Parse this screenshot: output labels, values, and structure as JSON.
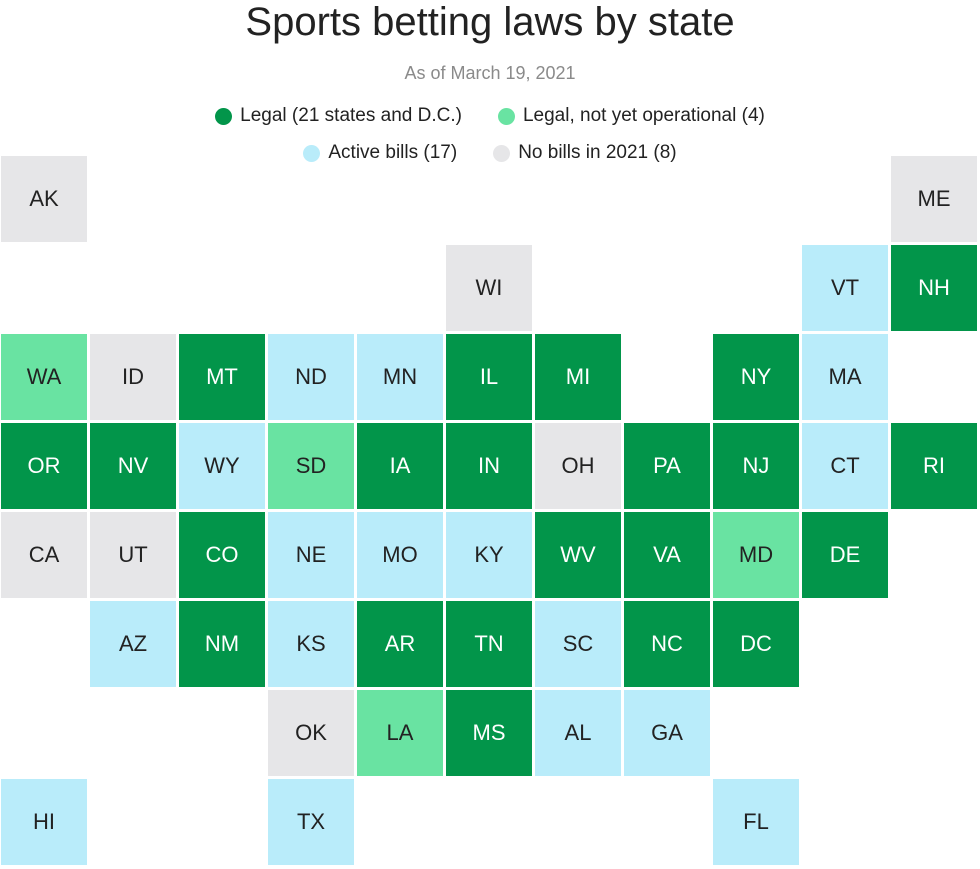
{
  "title": "Sports betting laws by state",
  "subtitle": "As of March 19, 2021",
  "colors": {
    "legal": "#02954a",
    "not_operational": "#69e3a2",
    "active": "#b9ecfa",
    "none": "#e6e6e8"
  },
  "legend": [
    {
      "key": "legal",
      "label": "Legal (21 states and D.C.)"
    },
    {
      "key": "not_operational",
      "label": "Legal, not yet operational (4)"
    },
    {
      "key": "active",
      "label": "Active bills (17)"
    },
    {
      "key": "none",
      "label": "No bills in 2021 (8)"
    }
  ],
  "states": [
    {
      "abbr": "AK",
      "col": 0,
      "row": 0,
      "status": "none"
    },
    {
      "abbr": "ME",
      "col": 10,
      "row": 0,
      "status": "none"
    },
    {
      "abbr": "WI",
      "col": 5,
      "row": 1,
      "status": "none"
    },
    {
      "abbr": "VT",
      "col": 9,
      "row": 1,
      "status": "active"
    },
    {
      "abbr": "NH",
      "col": 10,
      "row": 1,
      "status": "legal"
    },
    {
      "abbr": "WA",
      "col": 0,
      "row": 2,
      "status": "not_operational"
    },
    {
      "abbr": "ID",
      "col": 1,
      "row": 2,
      "status": "none"
    },
    {
      "abbr": "MT",
      "col": 2,
      "row": 2,
      "status": "legal"
    },
    {
      "abbr": "ND",
      "col": 3,
      "row": 2,
      "status": "active"
    },
    {
      "abbr": "MN",
      "col": 4,
      "row": 2,
      "status": "active"
    },
    {
      "abbr": "IL",
      "col": 5,
      "row": 2,
      "status": "legal"
    },
    {
      "abbr": "MI",
      "col": 6,
      "row": 2,
      "status": "legal"
    },
    {
      "abbr": "NY",
      "col": 8,
      "row": 2,
      "status": "legal"
    },
    {
      "abbr": "MA",
      "col": 9,
      "row": 2,
      "status": "active"
    },
    {
      "abbr": "OR",
      "col": 0,
      "row": 3,
      "status": "legal"
    },
    {
      "abbr": "NV",
      "col": 1,
      "row": 3,
      "status": "legal"
    },
    {
      "abbr": "WY",
      "col": 2,
      "row": 3,
      "status": "active"
    },
    {
      "abbr": "SD",
      "col": 3,
      "row": 3,
      "status": "not_operational"
    },
    {
      "abbr": "IA",
      "col": 4,
      "row": 3,
      "status": "legal"
    },
    {
      "abbr": "IN",
      "col": 5,
      "row": 3,
      "status": "legal"
    },
    {
      "abbr": "OH",
      "col": 6,
      "row": 3,
      "status": "none"
    },
    {
      "abbr": "PA",
      "col": 7,
      "row": 3,
      "status": "legal"
    },
    {
      "abbr": "NJ",
      "col": 8,
      "row": 3,
      "status": "legal"
    },
    {
      "abbr": "CT",
      "col": 9,
      "row": 3,
      "status": "active"
    },
    {
      "abbr": "RI",
      "col": 10,
      "row": 3,
      "status": "legal"
    },
    {
      "abbr": "CA",
      "col": 0,
      "row": 4,
      "status": "none"
    },
    {
      "abbr": "UT",
      "col": 1,
      "row": 4,
      "status": "none"
    },
    {
      "abbr": "CO",
      "col": 2,
      "row": 4,
      "status": "legal"
    },
    {
      "abbr": "NE",
      "col": 3,
      "row": 4,
      "status": "active"
    },
    {
      "abbr": "MO",
      "col": 4,
      "row": 4,
      "status": "active"
    },
    {
      "abbr": "KY",
      "col": 5,
      "row": 4,
      "status": "active"
    },
    {
      "abbr": "WV",
      "col": 6,
      "row": 4,
      "status": "legal"
    },
    {
      "abbr": "VA",
      "col": 7,
      "row": 4,
      "status": "legal"
    },
    {
      "abbr": "MD",
      "col": 8,
      "row": 4,
      "status": "not_operational"
    },
    {
      "abbr": "DE",
      "col": 9,
      "row": 4,
      "status": "legal"
    },
    {
      "abbr": "AZ",
      "col": 1,
      "row": 5,
      "status": "active"
    },
    {
      "abbr": "NM",
      "col": 2,
      "row": 5,
      "status": "legal"
    },
    {
      "abbr": "KS",
      "col": 3,
      "row": 5,
      "status": "active"
    },
    {
      "abbr": "AR",
      "col": 4,
      "row": 5,
      "status": "legal"
    },
    {
      "abbr": "TN",
      "col": 5,
      "row": 5,
      "status": "legal"
    },
    {
      "abbr": "SC",
      "col": 6,
      "row": 5,
      "status": "active"
    },
    {
      "abbr": "NC",
      "col": 7,
      "row": 5,
      "status": "legal"
    },
    {
      "abbr": "DC",
      "col": 8,
      "row": 5,
      "status": "legal"
    },
    {
      "abbr": "OK",
      "col": 3,
      "row": 6,
      "status": "none"
    },
    {
      "abbr": "LA",
      "col": 4,
      "row": 6,
      "status": "not_operational"
    },
    {
      "abbr": "MS",
      "col": 5,
      "row": 6,
      "status": "legal"
    },
    {
      "abbr": "AL",
      "col": 6,
      "row": 6,
      "status": "active"
    },
    {
      "abbr": "GA",
      "col": 7,
      "row": 6,
      "status": "active"
    },
    {
      "abbr": "HI",
      "col": 0,
      "row": 7,
      "status": "active"
    },
    {
      "abbr": "TX",
      "col": 3,
      "row": 7,
      "status": "active"
    },
    {
      "abbr": "FL",
      "col": 8,
      "row": 7,
      "status": "active"
    }
  ]
}
